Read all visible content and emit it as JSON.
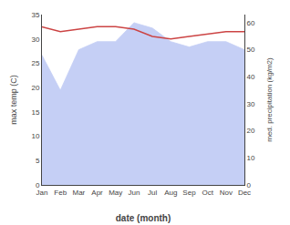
{
  "chart_data": {
    "type": "line",
    "xlabel": "date (month)",
    "ylabel": "max temp (C)",
    "y2label": "med. precipitation (kg/m2)",
    "categories": [
      "Jan",
      "Feb",
      "Mar",
      "Apr",
      "May",
      "Jun",
      "Jul",
      "Aug",
      "Sep",
      "Oct",
      "Nov",
      "Dec"
    ],
    "series": [
      {
        "type": "area",
        "axis": "y2",
        "color": "#c5cff5",
        "values": [
          48,
          35,
          50,
          53,
          53,
          60,
          58,
          53,
          51,
          53,
          53,
          50
        ]
      },
      {
        "type": "line",
        "color": "#cc4444",
        "values": [
          32.5,
          31.5,
          32.0,
          32.5,
          32.5,
          32.0,
          30.5,
          30.0,
          30.5,
          31.0,
          31.5,
          31.5
        ]
      }
    ],
    "ylim": [
      0,
      35
    ],
    "yticks": [
      0,
      5,
      10,
      15,
      20,
      25,
      30,
      35
    ],
    "y2lim": [
      0,
      63
    ],
    "y2ticks": [
      0,
      10,
      20,
      30,
      40,
      50,
      60
    ],
    "grid": false
  }
}
